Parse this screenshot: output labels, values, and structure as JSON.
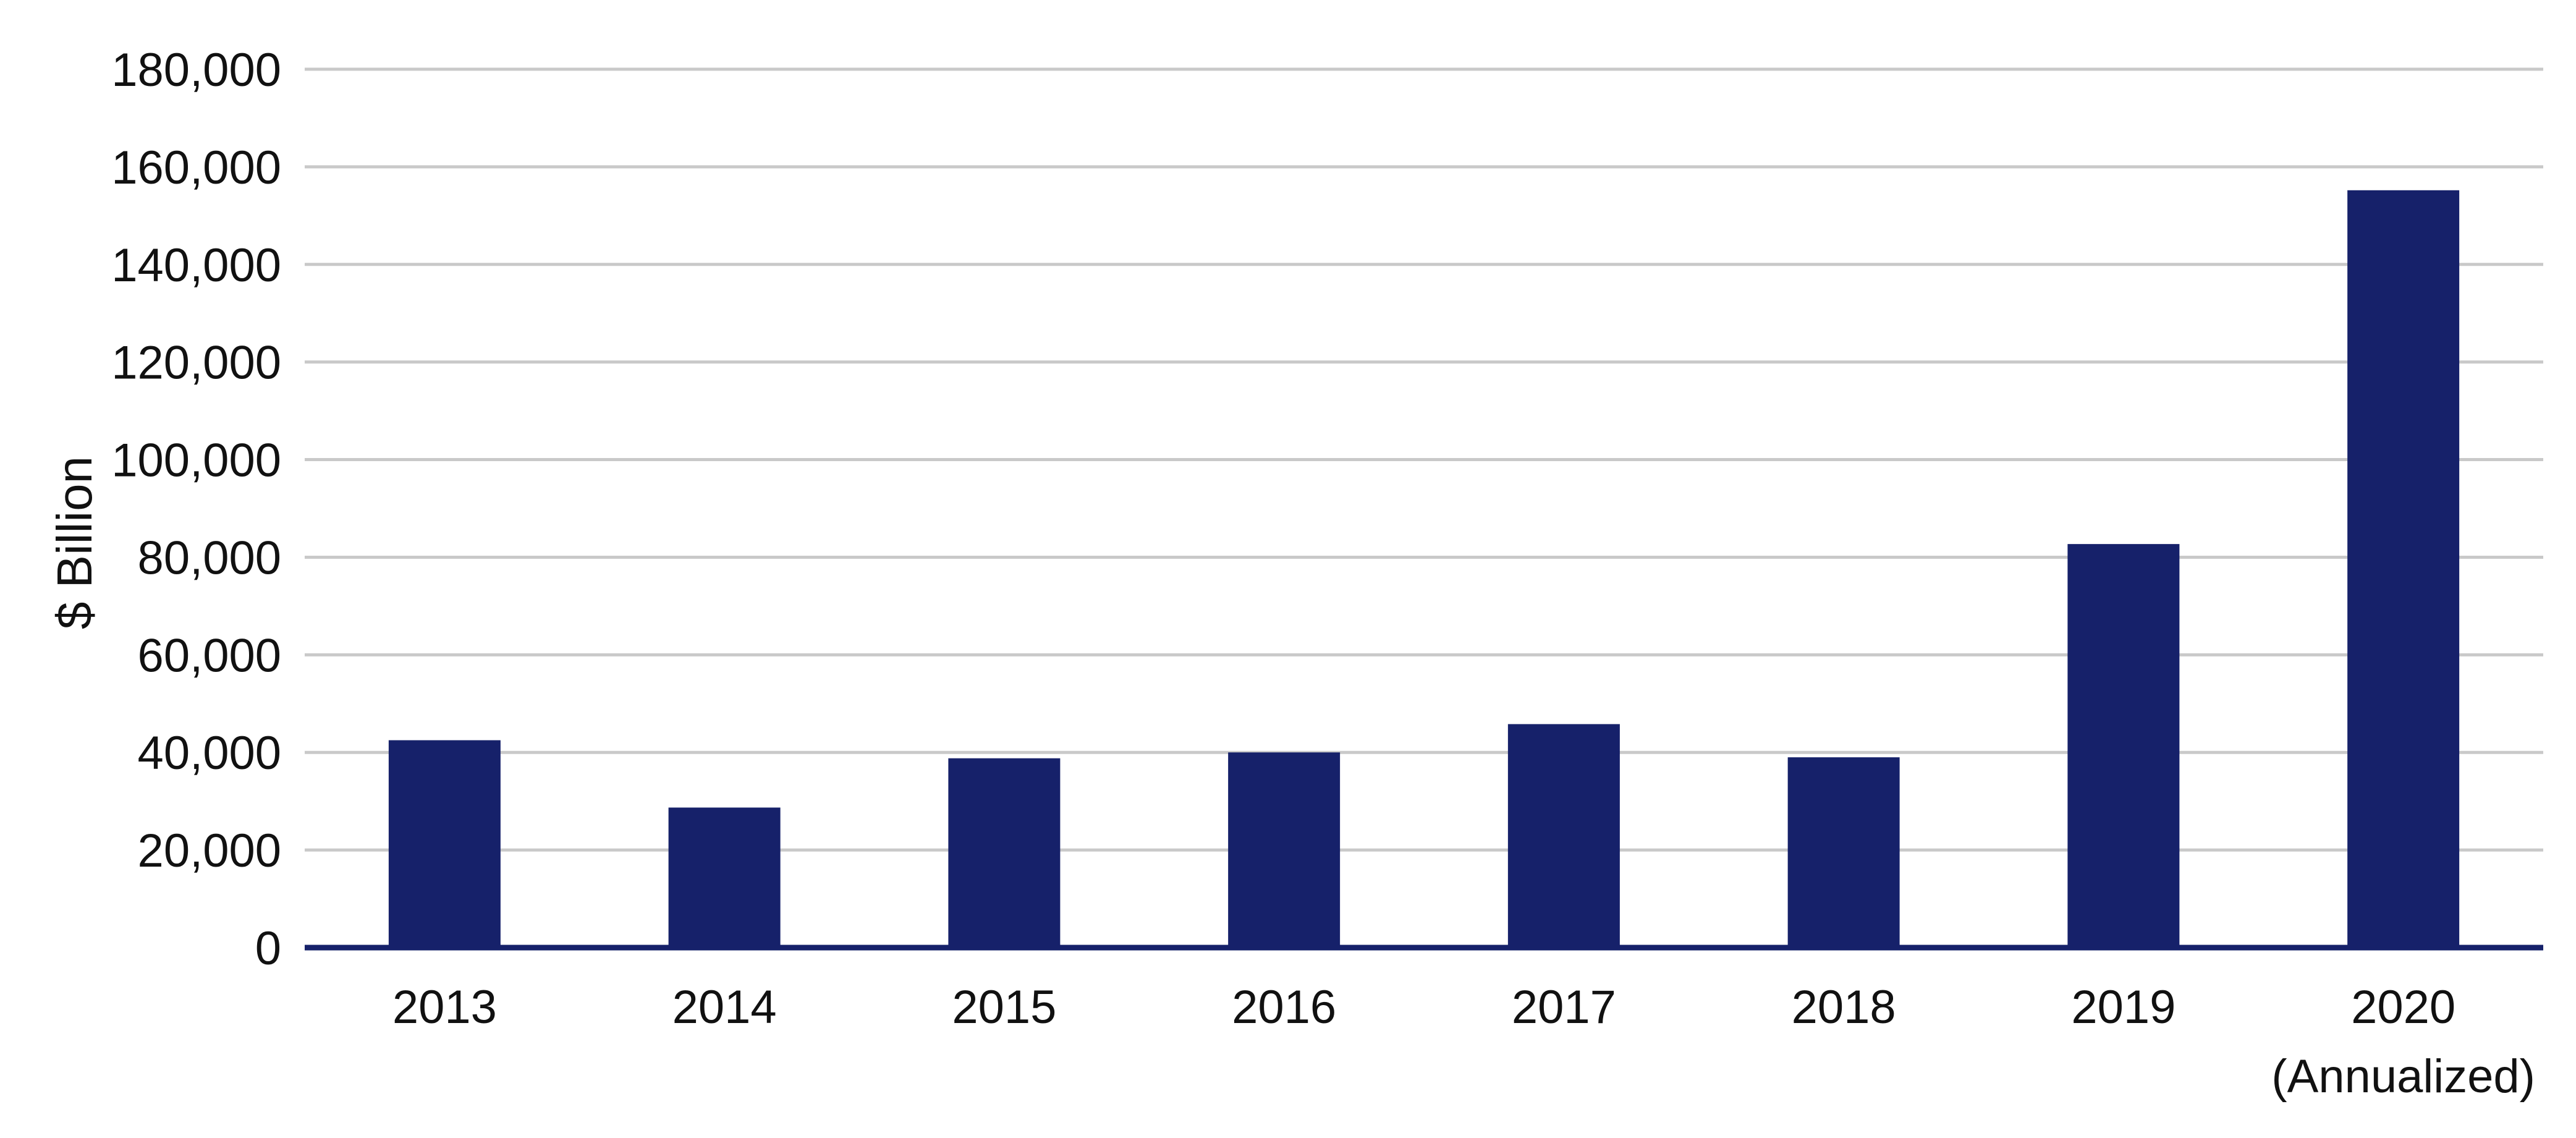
{
  "chart_data": {
    "type": "bar",
    "title": "",
    "xlabel": "",
    "ylabel": "$ Billion",
    "categories": [
      "2013",
      "2014",
      "2015",
      "2016",
      "2017",
      "2018",
      "2019",
      "2020"
    ],
    "category_sublabels": [
      "",
      "",
      "",
      "",
      "",
      "",
      "",
      "(Annualized)"
    ],
    "values": [
      42500,
      28700,
      38800,
      40000,
      45800,
      39000,
      82700,
      155200
    ],
    "ylim": [
      0,
      180000
    ],
    "yticks": [
      0,
      20000,
      40000,
      60000,
      80000,
      100000,
      120000,
      140000,
      160000,
      180000
    ],
    "ytick_labels": [
      "0",
      "20,000",
      "40,000",
      "60,000",
      "80,000",
      "100,000",
      "120,000",
      "140,000",
      "160,000",
      "180,000"
    ],
    "grid": true,
    "legend": "none",
    "colors": {
      "bar": "#16216a",
      "baseline": "#16216a",
      "grid": "#c9c9c9"
    }
  }
}
